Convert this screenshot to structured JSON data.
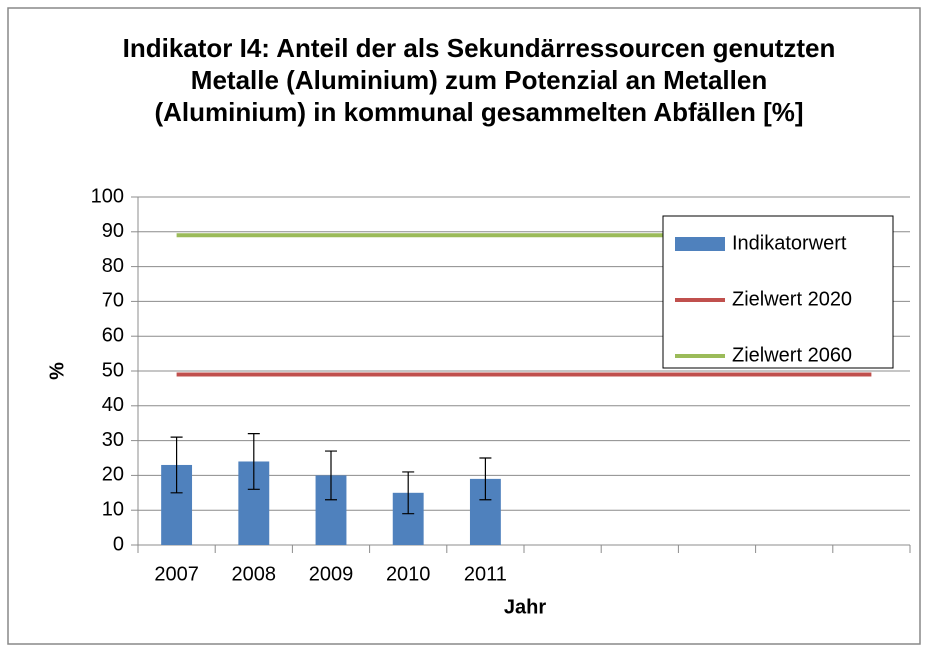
{
  "chart_data": {
    "type": "bar",
    "title": "Indikator I4:  Anteil der als Sekundärressourcen genutzten Metalle (Aluminium) zum Potenzial an Metallen (Aluminium) in kommunal gesammelten Abfällen [%]",
    "xlabel": "Jahr",
    "ylabel": "%",
    "categories": [
      "2007",
      "2008",
      "2009",
      "2010",
      "2011",
      null,
      null,
      null,
      null,
      null
    ],
    "series": [
      {
        "name": "Indikatorwert",
        "type": "bar",
        "color": "#4f81bd",
        "values": [
          23,
          24,
          20,
          15,
          19,
          null,
          null,
          null,
          null,
          null
        ],
        "errors": [
          8,
          8,
          7,
          6,
          6,
          null,
          null,
          null,
          null,
          null
        ]
      },
      {
        "name": "Zielwert 2020",
        "type": "line",
        "color": "#c0504d",
        "values": [
          49,
          49,
          49,
          49,
          49,
          49,
          49,
          49,
          49,
          49
        ]
      },
      {
        "name": "Zielwert 2060",
        "type": "line",
        "color": "#9bbb59",
        "values": [
          89,
          89,
          89,
          89,
          89,
          89,
          89,
          89,
          89,
          89
        ]
      }
    ],
    "ylim": [
      0,
      100
    ],
    "yticks": [
      0,
      10,
      20,
      30,
      40,
      50,
      60,
      70,
      80,
      90,
      100
    ],
    "grid": true,
    "legend": "upper right"
  }
}
